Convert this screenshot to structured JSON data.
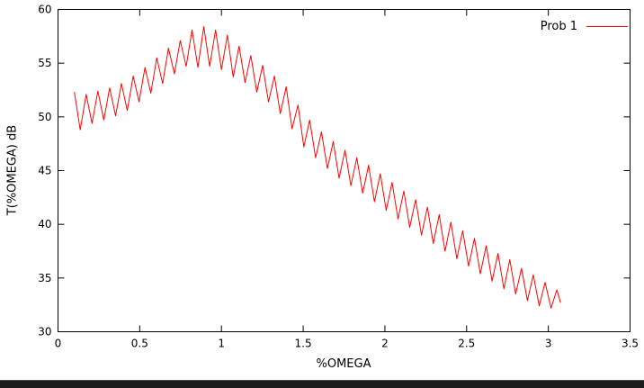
{
  "chart_data": {
    "type": "line",
    "title": "",
    "xlabel": "%OMEGA",
    "ylabel": "T(%OMEGA) dB",
    "xlim": [
      0,
      3.5
    ],
    "ylim": [
      30,
      60
    ],
    "xticks": [
      "0",
      "0.5",
      "1",
      "1.5",
      "2",
      "2.5",
      "3",
      "3.5"
    ],
    "yticks": [
      "30",
      "35",
      "40",
      "45",
      "50",
      "55",
      "60"
    ],
    "grid": false,
    "legend_position": "top-right",
    "border_color": "#000000",
    "series": [
      {
        "name": "Prob 1",
        "color": "#ff0000",
        "points": [
          [
            0.1,
            52.3
          ],
          [
            0.136,
            48.8
          ],
          [
            0.172,
            52.1
          ],
          [
            0.208,
            49.4
          ],
          [
            0.244,
            52.4
          ],
          [
            0.28,
            49.7
          ],
          [
            0.316,
            52.7
          ],
          [
            0.352,
            50.1
          ],
          [
            0.388,
            53.1
          ],
          [
            0.424,
            50.6
          ],
          [
            0.46,
            53.8
          ],
          [
            0.496,
            51.4
          ],
          [
            0.532,
            54.6
          ],
          [
            0.568,
            52.2
          ],
          [
            0.604,
            55.5
          ],
          [
            0.64,
            53.1
          ],
          [
            0.676,
            56.4
          ],
          [
            0.712,
            54.0
          ],
          [
            0.748,
            57.1
          ],
          [
            0.784,
            54.7
          ],
          [
            0.82,
            58.1
          ],
          [
            0.856,
            54.6
          ],
          [
            0.892,
            58.4
          ],
          [
            0.928,
            54.7
          ],
          [
            0.964,
            58.1
          ],
          [
            1.0,
            54.4
          ],
          [
            1.036,
            57.6
          ],
          [
            1.072,
            53.7
          ],
          [
            1.108,
            56.6
          ],
          [
            1.144,
            53.2
          ],
          [
            1.18,
            55.7
          ],
          [
            1.216,
            52.3
          ],
          [
            1.252,
            54.8
          ],
          [
            1.288,
            51.4
          ],
          [
            1.324,
            53.8
          ],
          [
            1.36,
            50.3
          ],
          [
            1.396,
            52.8
          ],
          [
            1.432,
            48.9
          ],
          [
            1.468,
            51.1
          ],
          [
            1.504,
            47.2
          ],
          [
            1.54,
            49.7
          ],
          [
            1.576,
            46.2
          ],
          [
            1.612,
            48.6
          ],
          [
            1.648,
            45.2
          ],
          [
            1.684,
            47.7
          ],
          [
            1.72,
            44.3
          ],
          [
            1.756,
            46.9
          ],
          [
            1.792,
            43.6
          ],
          [
            1.828,
            46.2
          ],
          [
            1.864,
            42.9
          ],
          [
            1.9,
            45.5
          ],
          [
            1.936,
            42.1
          ],
          [
            1.972,
            44.7
          ],
          [
            2.008,
            41.3
          ],
          [
            2.044,
            43.9
          ],
          [
            2.08,
            40.5
          ],
          [
            2.116,
            43.1
          ],
          [
            2.152,
            39.7
          ],
          [
            2.188,
            42.3
          ],
          [
            2.224,
            39.0
          ],
          [
            2.26,
            41.6
          ],
          [
            2.296,
            38.2
          ],
          [
            2.332,
            40.9
          ],
          [
            2.368,
            37.5
          ],
          [
            2.404,
            40.2
          ],
          [
            2.44,
            36.8
          ],
          [
            2.476,
            39.4
          ],
          [
            2.512,
            36.1
          ],
          [
            2.548,
            38.7
          ],
          [
            2.584,
            35.4
          ],
          [
            2.62,
            38.0
          ],
          [
            2.656,
            34.7
          ],
          [
            2.692,
            37.3
          ],
          [
            2.728,
            34.0
          ],
          [
            2.764,
            36.7
          ],
          [
            2.8,
            33.5
          ],
          [
            2.836,
            35.9
          ],
          [
            2.872,
            32.9
          ],
          [
            2.908,
            35.3
          ],
          [
            2.944,
            32.4
          ],
          [
            2.98,
            34.6
          ],
          [
            3.016,
            32.2
          ],
          [
            3.052,
            33.9
          ],
          [
            3.075,
            32.7
          ]
        ]
      }
    ]
  },
  "window": {
    "bottom_bar_color": "#1c1c1c"
  }
}
